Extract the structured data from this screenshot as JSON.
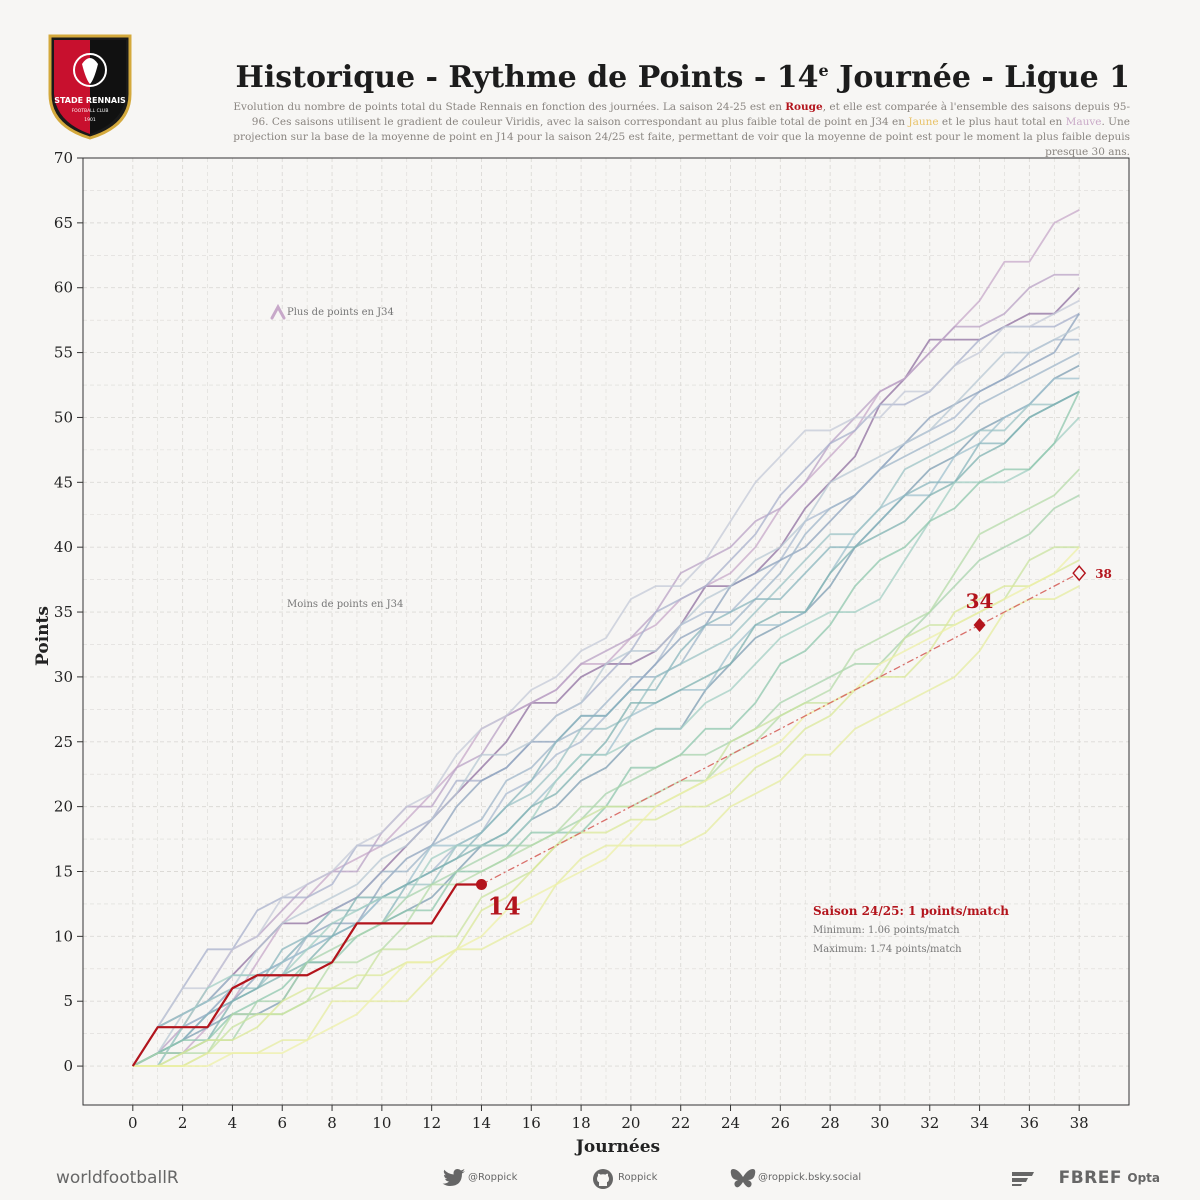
{
  "header": {
    "crest_text": "STADE RENNAIS",
    "crest_sub": "FOOTBALL CLUB",
    "crest_year": "1901",
    "title_main": "Historique - Rythme de Points - 14",
    "title_sup": "e",
    "title_end": " Journée - Ligue 1",
    "subtitle_1": "Evolution du nombre de points total du Stade Rennais en fonction des journées. La saison 24-25 est en ",
    "subtitle_rouge": "Rouge",
    "subtitle_2": ", et elle est comparée à l'ensemble des saisons depuis 95-96. Ces saisons utilisent le gradient de couleur Viridis, avec la saison correspondant au plus faible total de point en J34 en ",
    "subtitle_jaune": "Jaune",
    "subtitle_3": " et le plus haut total en ",
    "subtitle_mauve": "Mauve",
    "subtitle_4": ". Une projection sur la base de la moyenne de point en J14 pour la saison 24/25 est faite, permettant de voir que la moyenne de point est pour le moment la plus faible depuis presque 30 ans."
  },
  "chart_data": {
    "type": "line",
    "xlabel": "Journées",
    "ylabel": "Points",
    "xlim": [
      -2,
      40
    ],
    "ylim": [
      -3,
      70
    ],
    "xticks": [
      0,
      2,
      4,
      6,
      8,
      10,
      12,
      14,
      16,
      18,
      20,
      22,
      24,
      26,
      28,
      30,
      32,
      34,
      36,
      38
    ],
    "yticks": [
      0,
      5,
      10,
      15,
      20,
      25,
      30,
      35,
      40,
      45,
      50,
      55,
      60,
      65,
      70
    ],
    "grid": true,
    "current_season": {
      "name": "Saison 24/25",
      "color": "#b3141c",
      "x": [
        0,
        1,
        2,
        3,
        4,
        5,
        6,
        7,
        8,
        9,
        10,
        11,
        12,
        13,
        14
      ],
      "y": [
        0,
        3,
        3,
        3,
        6,
        7,
        7,
        7,
        8,
        11,
        11,
        11,
        11,
        14,
        14
      ]
    },
    "projection": {
      "x": [
        14,
        34,
        38
      ],
      "y": [
        14,
        34,
        38
      ],
      "color": "#d9706b"
    },
    "annotations": {
      "current_label": "14",
      "j34_label": "34",
      "j38_label": "38",
      "stats_title": "Saison 24/25: 1 points/match",
      "stats_min": "Minimum: 1.06 points/match",
      "stats_max": "Maximum: 1.74 points/match",
      "arrow_top": "Plus de points en J34",
      "arrow_bottom": "Moins de points en J34"
    },
    "historical_seasons": [
      {
        "color": "#8f6fa0",
        "y": [
          0,
          3,
          4,
          5,
          7,
          9,
          11,
          11,
          12,
          13,
          15,
          17,
          19,
          21,
          23,
          25,
          28,
          28,
          30,
          31,
          31,
          32,
          34,
          37,
          37,
          38,
          40,
          43,
          45,
          47,
          51,
          53,
          56,
          56,
          56,
          57,
          58,
          58,
          60
        ]
      },
      {
        "color": "#c7a8c9",
        "y": [
          0,
          1,
          1,
          3,
          5,
          8,
          11,
          13,
          15,
          16,
          17,
          19,
          21,
          23,
          26,
          27,
          28,
          29,
          31,
          31,
          33,
          34,
          36,
          37,
          38,
          40,
          43,
          45,
          47,
          49,
          52,
          53,
          55,
          57,
          59,
          62,
          62,
          65,
          66
        ]
      },
      {
        "color": "#b9a2c6",
        "y": [
          0,
          1,
          3,
          6,
          9,
          10,
          12,
          14,
          15,
          15,
          18,
          20,
          20,
          23,
          24,
          27,
          28,
          29,
          31,
          32,
          33,
          35,
          38,
          39,
          40,
          42,
          43,
          45,
          48,
          50,
          52,
          53,
          55,
          57,
          57,
          58,
          60,
          61,
          61
        ]
      },
      {
        "color": "#a8b0cc",
        "y": [
          0,
          3,
          6,
          9,
          9,
          12,
          13,
          13,
          14,
          17,
          17,
          18,
          19,
          22,
          22,
          23,
          25,
          27,
          28,
          30,
          32,
          35,
          36,
          37,
          39,
          41,
          44,
          46,
          48,
          49,
          51,
          51,
          52,
          54,
          56,
          57,
          57,
          57,
          58
        ]
      },
      {
        "color": "#aab9d0",
        "y": [
          0,
          3,
          3,
          4,
          6,
          7,
          8,
          9,
          10,
          11,
          13,
          14,
          15,
          17,
          18,
          21,
          22,
          24,
          25,
          27,
          29,
          31,
          34,
          35,
          35,
          37,
          39,
          42,
          43,
          44,
          46,
          48,
          49,
          50,
          52,
          53,
          55,
          56,
          56
        ]
      },
      {
        "color": "#c4c9d8",
        "y": [
          0,
          3,
          6,
          6,
          9,
          10,
          13,
          14,
          15,
          17,
          18,
          20,
          21,
          24,
          26,
          27,
          29,
          30,
          32,
          33,
          36,
          37,
          37,
          39,
          42,
          45,
          47,
          49,
          49,
          50,
          50,
          52,
          52,
          54,
          55,
          57,
          57,
          58,
          59
        ]
      },
      {
        "color": "#8ea3bd",
        "y": [
          0,
          1,
          2,
          4,
          5,
          7,
          8,
          10,
          11,
          11,
          14,
          16,
          17,
          20,
          22,
          23,
          25,
          25,
          27,
          27,
          29,
          31,
          33,
          34,
          37,
          38,
          39,
          40,
          42,
          44,
          46,
          48,
          50,
          51,
          52,
          53,
          54,
          55,
          58
        ]
      },
      {
        "color": "#9fb5c9",
        "y": [
          0,
          0,
          3,
          4,
          6,
          7,
          7,
          10,
          12,
          13,
          15,
          15,
          17,
          18,
          19,
          22,
          23,
          25,
          26,
          28,
          30,
          30,
          31,
          34,
          34,
          36,
          38,
          41,
          43,
          44,
          46,
          47,
          48,
          49,
          51,
          52,
          53,
          54,
          55
        ]
      },
      {
        "color": "#b8c8d4",
        "y": [
          0,
          1,
          4,
          5,
          6,
          9,
          11,
          12,
          13,
          14,
          16,
          17,
          19,
          21,
          24,
          24,
          25,
          27,
          28,
          31,
          32,
          32,
          34,
          36,
          37,
          39,
          40,
          42,
          45,
          46,
          47,
          48,
          49,
          51,
          53,
          55,
          55,
          56,
          57
        ]
      },
      {
        "color": "#7e9db3",
        "y": [
          0,
          1,
          2,
          3,
          4,
          4,
          5,
          8,
          8,
          11,
          11,
          12,
          13,
          15,
          17,
          17,
          19,
          20,
          22,
          23,
          25,
          26,
          26,
          29,
          31,
          33,
          34,
          35,
          37,
          40,
          42,
          44,
          46,
          47,
          49,
          50,
          51,
          53,
          54
        ]
      },
      {
        "color": "#a0c2cf",
        "y": [
          0,
          3,
          4,
          5,
          7,
          7,
          8,
          9,
          10,
          11,
          13,
          14,
          17,
          17,
          17,
          18,
          20,
          22,
          24,
          24,
          27,
          28,
          29,
          29,
          32,
          34,
          34,
          35,
          38,
          41,
          43,
          44,
          44,
          47,
          48,
          50,
          51,
          53,
          53
        ]
      },
      {
        "color": "#9cc3c6",
        "y": [
          0,
          3,
          4,
          5,
          6,
          6,
          8,
          10,
          12,
          12,
          13,
          14,
          14,
          17,
          18,
          20,
          21,
          23,
          26,
          26,
          27,
          30,
          31,
          32,
          33,
          35,
          37,
          39,
          41,
          41,
          43,
          46,
          47,
          48,
          49,
          49,
          51,
          51,
          52
        ]
      },
      {
        "color": "#89b6bd",
        "y": [
          0,
          1,
          2,
          4,
          5,
          6,
          9,
          10,
          10,
          11,
          11,
          14,
          15,
          16,
          18,
          20,
          22,
          25,
          27,
          27,
          29,
          29,
          32,
          34,
          35,
          36,
          36,
          38,
          40,
          40,
          42,
          44,
          45,
          45,
          48,
          48,
          50,
          51,
          52
        ]
      },
      {
        "color": "#7fb2b1",
        "y": [
          0,
          1,
          1,
          2,
          5,
          6,
          7,
          8,
          10,
          13,
          13,
          14,
          15,
          16,
          17,
          18,
          20,
          21,
          23,
          25,
          28,
          28,
          29,
          30,
          31,
          34,
          35,
          35,
          38,
          40,
          41,
          42,
          44,
          45,
          47,
          48,
          50,
          51,
          52
        ]
      },
      {
        "color": "#a3cfc4",
        "y": [
          0,
          0,
          3,
          6,
          7,
          7,
          7,
          9,
          11,
          12,
          13,
          13,
          16,
          17,
          17,
          17,
          19,
          22,
          24,
          24,
          25,
          26,
          26,
          28,
          29,
          31,
          33,
          34,
          35,
          35,
          36,
          39,
          42,
          45,
          45,
          45,
          46,
          48,
          50
        ]
      },
      {
        "color": "#8fc7ae",
        "y": [
          0,
          1,
          2,
          2,
          4,
          5,
          6,
          8,
          8,
          10,
          11,
          12,
          12,
          15,
          15,
          16,
          18,
          18,
          18,
          20,
          23,
          23,
          24,
          26,
          26,
          28,
          31,
          32,
          34,
          37,
          39,
          40,
          42,
          43,
          45,
          46,
          46,
          48,
          52
        ]
      },
      {
        "color": "#a8d3ae",
        "y": [
          0,
          1,
          1,
          2,
          2,
          5,
          5,
          8,
          9,
          10,
          11,
          13,
          14,
          15,
          16,
          17,
          17,
          18,
          19,
          21,
          22,
          23,
          24,
          24,
          25,
          26,
          28,
          29,
          30,
          31,
          31,
          33,
          35,
          37,
          39,
          40,
          41,
          43,
          44
        ]
      },
      {
        "color": "#b6dba9",
        "y": [
          0,
          0,
          1,
          1,
          4,
          4,
          4,
          5,
          8,
          8,
          9,
          11,
          14,
          14,
          15,
          16,
          17,
          18,
          20,
          20,
          20,
          21,
          22,
          22,
          24,
          25,
          27,
          28,
          29,
          32,
          33,
          34,
          35,
          38,
          41,
          42,
          43,
          44,
          46
        ]
      },
      {
        "color": "#c9e3a0",
        "y": [
          0,
          0,
          0,
          1,
          3,
          4,
          4,
          5,
          6,
          6,
          9,
          9,
          10,
          10,
          13,
          14,
          15,
          17,
          19,
          20,
          20,
          20,
          21,
          22,
          25,
          26,
          27,
          28,
          28,
          29,
          30,
          33,
          34,
          34,
          35,
          36,
          39,
          40,
          40
        ]
      },
      {
        "color": "#dbe89a",
        "y": [
          0,
          0,
          1,
          2,
          2,
          3,
          5,
          6,
          6,
          7,
          7,
          8,
          8,
          9,
          12,
          13,
          15,
          17,
          18,
          18,
          19,
          19,
          20,
          20,
          21,
          23,
          24,
          26,
          27,
          29,
          30,
          30,
          32,
          35,
          36,
          37,
          37,
          38,
          39
        ]
      },
      {
        "color": "#e6eca0",
        "y": [
          0,
          0,
          0,
          1,
          1,
          1,
          2,
          2,
          5,
          5,
          5,
          5,
          7,
          9,
          9,
          10,
          11,
          14,
          16,
          17,
          17,
          17,
          17,
          18,
          20,
          21,
          22,
          24,
          24,
          26,
          27,
          28,
          29,
          30,
          32,
          35,
          36,
          36,
          37
        ]
      },
      {
        "color": "#eef0a8",
        "y": [
          0,
          0,
          0,
          0,
          1,
          1,
          1,
          2,
          3,
          4,
          6,
          8,
          8,
          9,
          10,
          12,
          13,
          14,
          15,
          16,
          18,
          20,
          21,
          22,
          23,
          24,
          25,
          27,
          28,
          29,
          31,
          32,
          33,
          34,
          35,
          36,
          37,
          38,
          40
        ]
      }
    ]
  },
  "footer": {
    "brand": "worldfootballR",
    "twitter": "@Roppick",
    "github": "Roppick",
    "bluesky": "@roppick.bsky.social",
    "source_fbref": "FBREF",
    "source_opta": "Opta"
  }
}
